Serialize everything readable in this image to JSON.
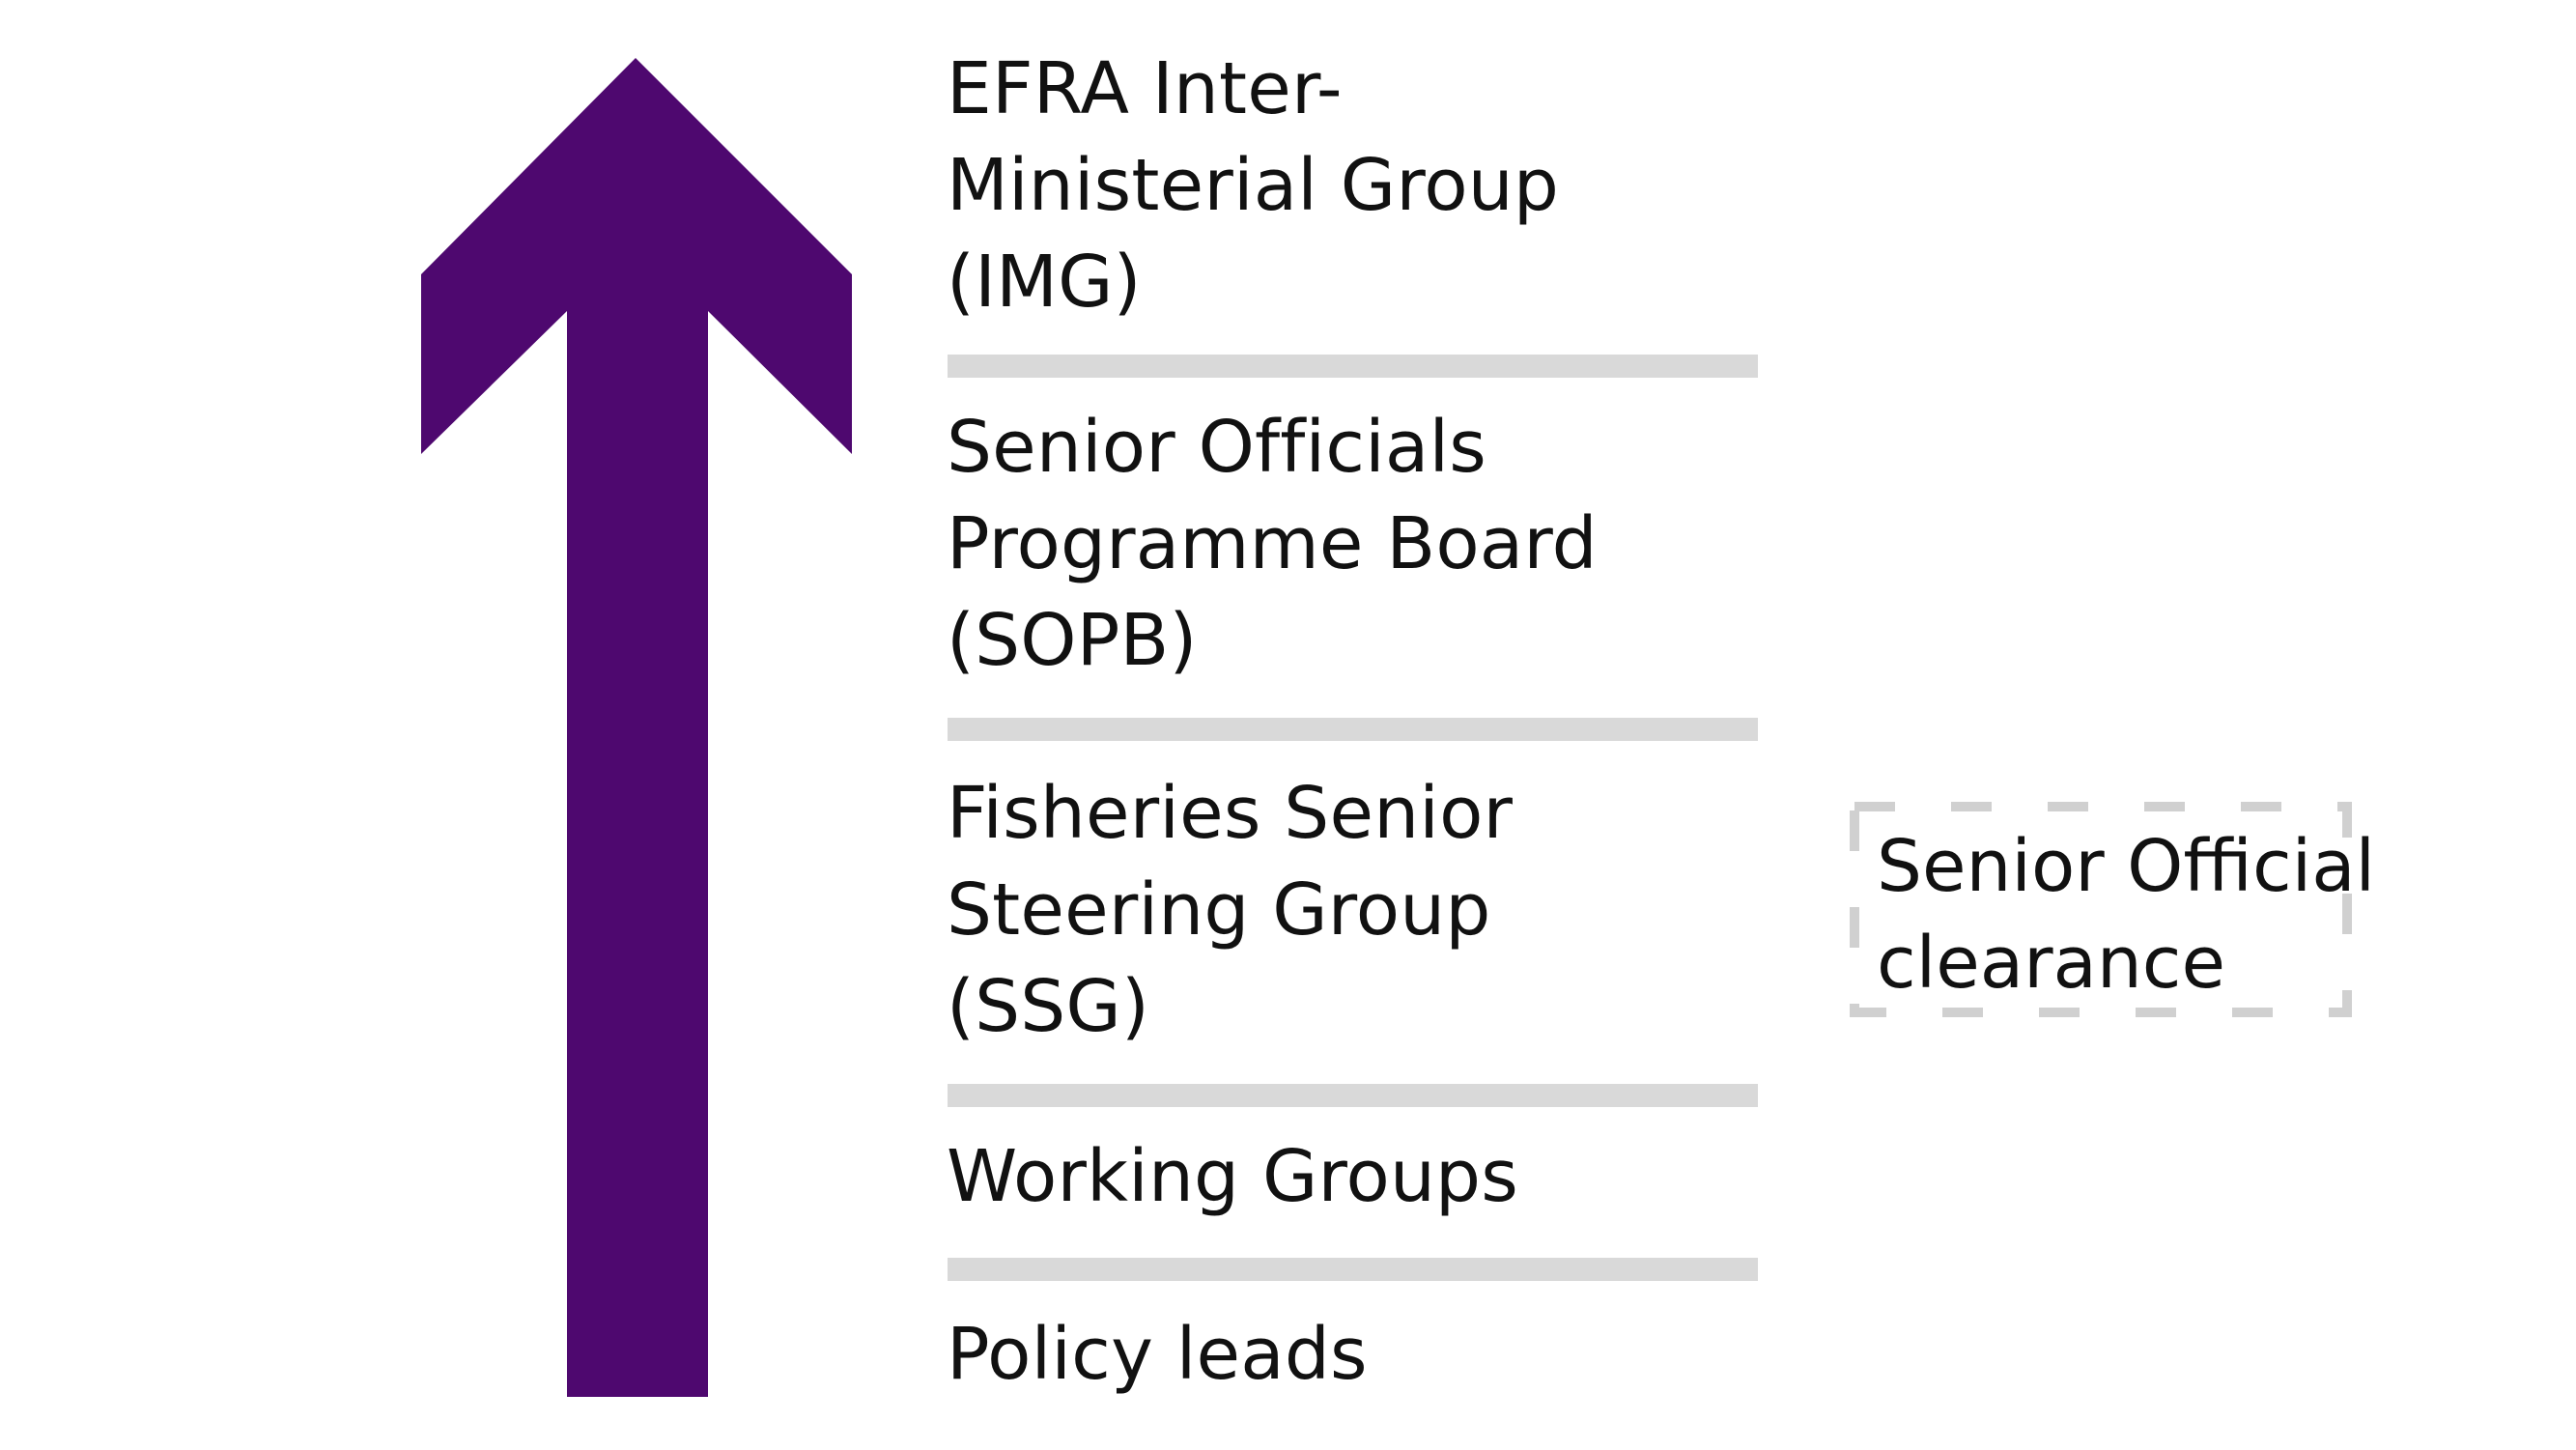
{
  "colors": {
    "arrow": "#4e086f",
    "divider": "#d9d9d9",
    "dashed_border": "#d0d0d0",
    "text": "#111111"
  },
  "hierarchy": {
    "levels": [
      {
        "lines": [
          "EFRA Inter-",
          "Ministerial Group",
          "(IMG)"
        ]
      },
      {
        "lines": [
          "Senior Officials",
          "Programme Board",
          "(SOPB)"
        ]
      },
      {
        "lines": [
          "Fisheries Senior",
          "Steering Group",
          "(SSG)"
        ]
      },
      {
        "lines": [
          "Working Groups"
        ]
      },
      {
        "lines": [
          "Policy leads"
        ]
      }
    ]
  },
  "clearance": {
    "lines": [
      "Senior Official",
      "clearance"
    ]
  },
  "icons": {
    "direction": "up-arrow-icon"
  }
}
